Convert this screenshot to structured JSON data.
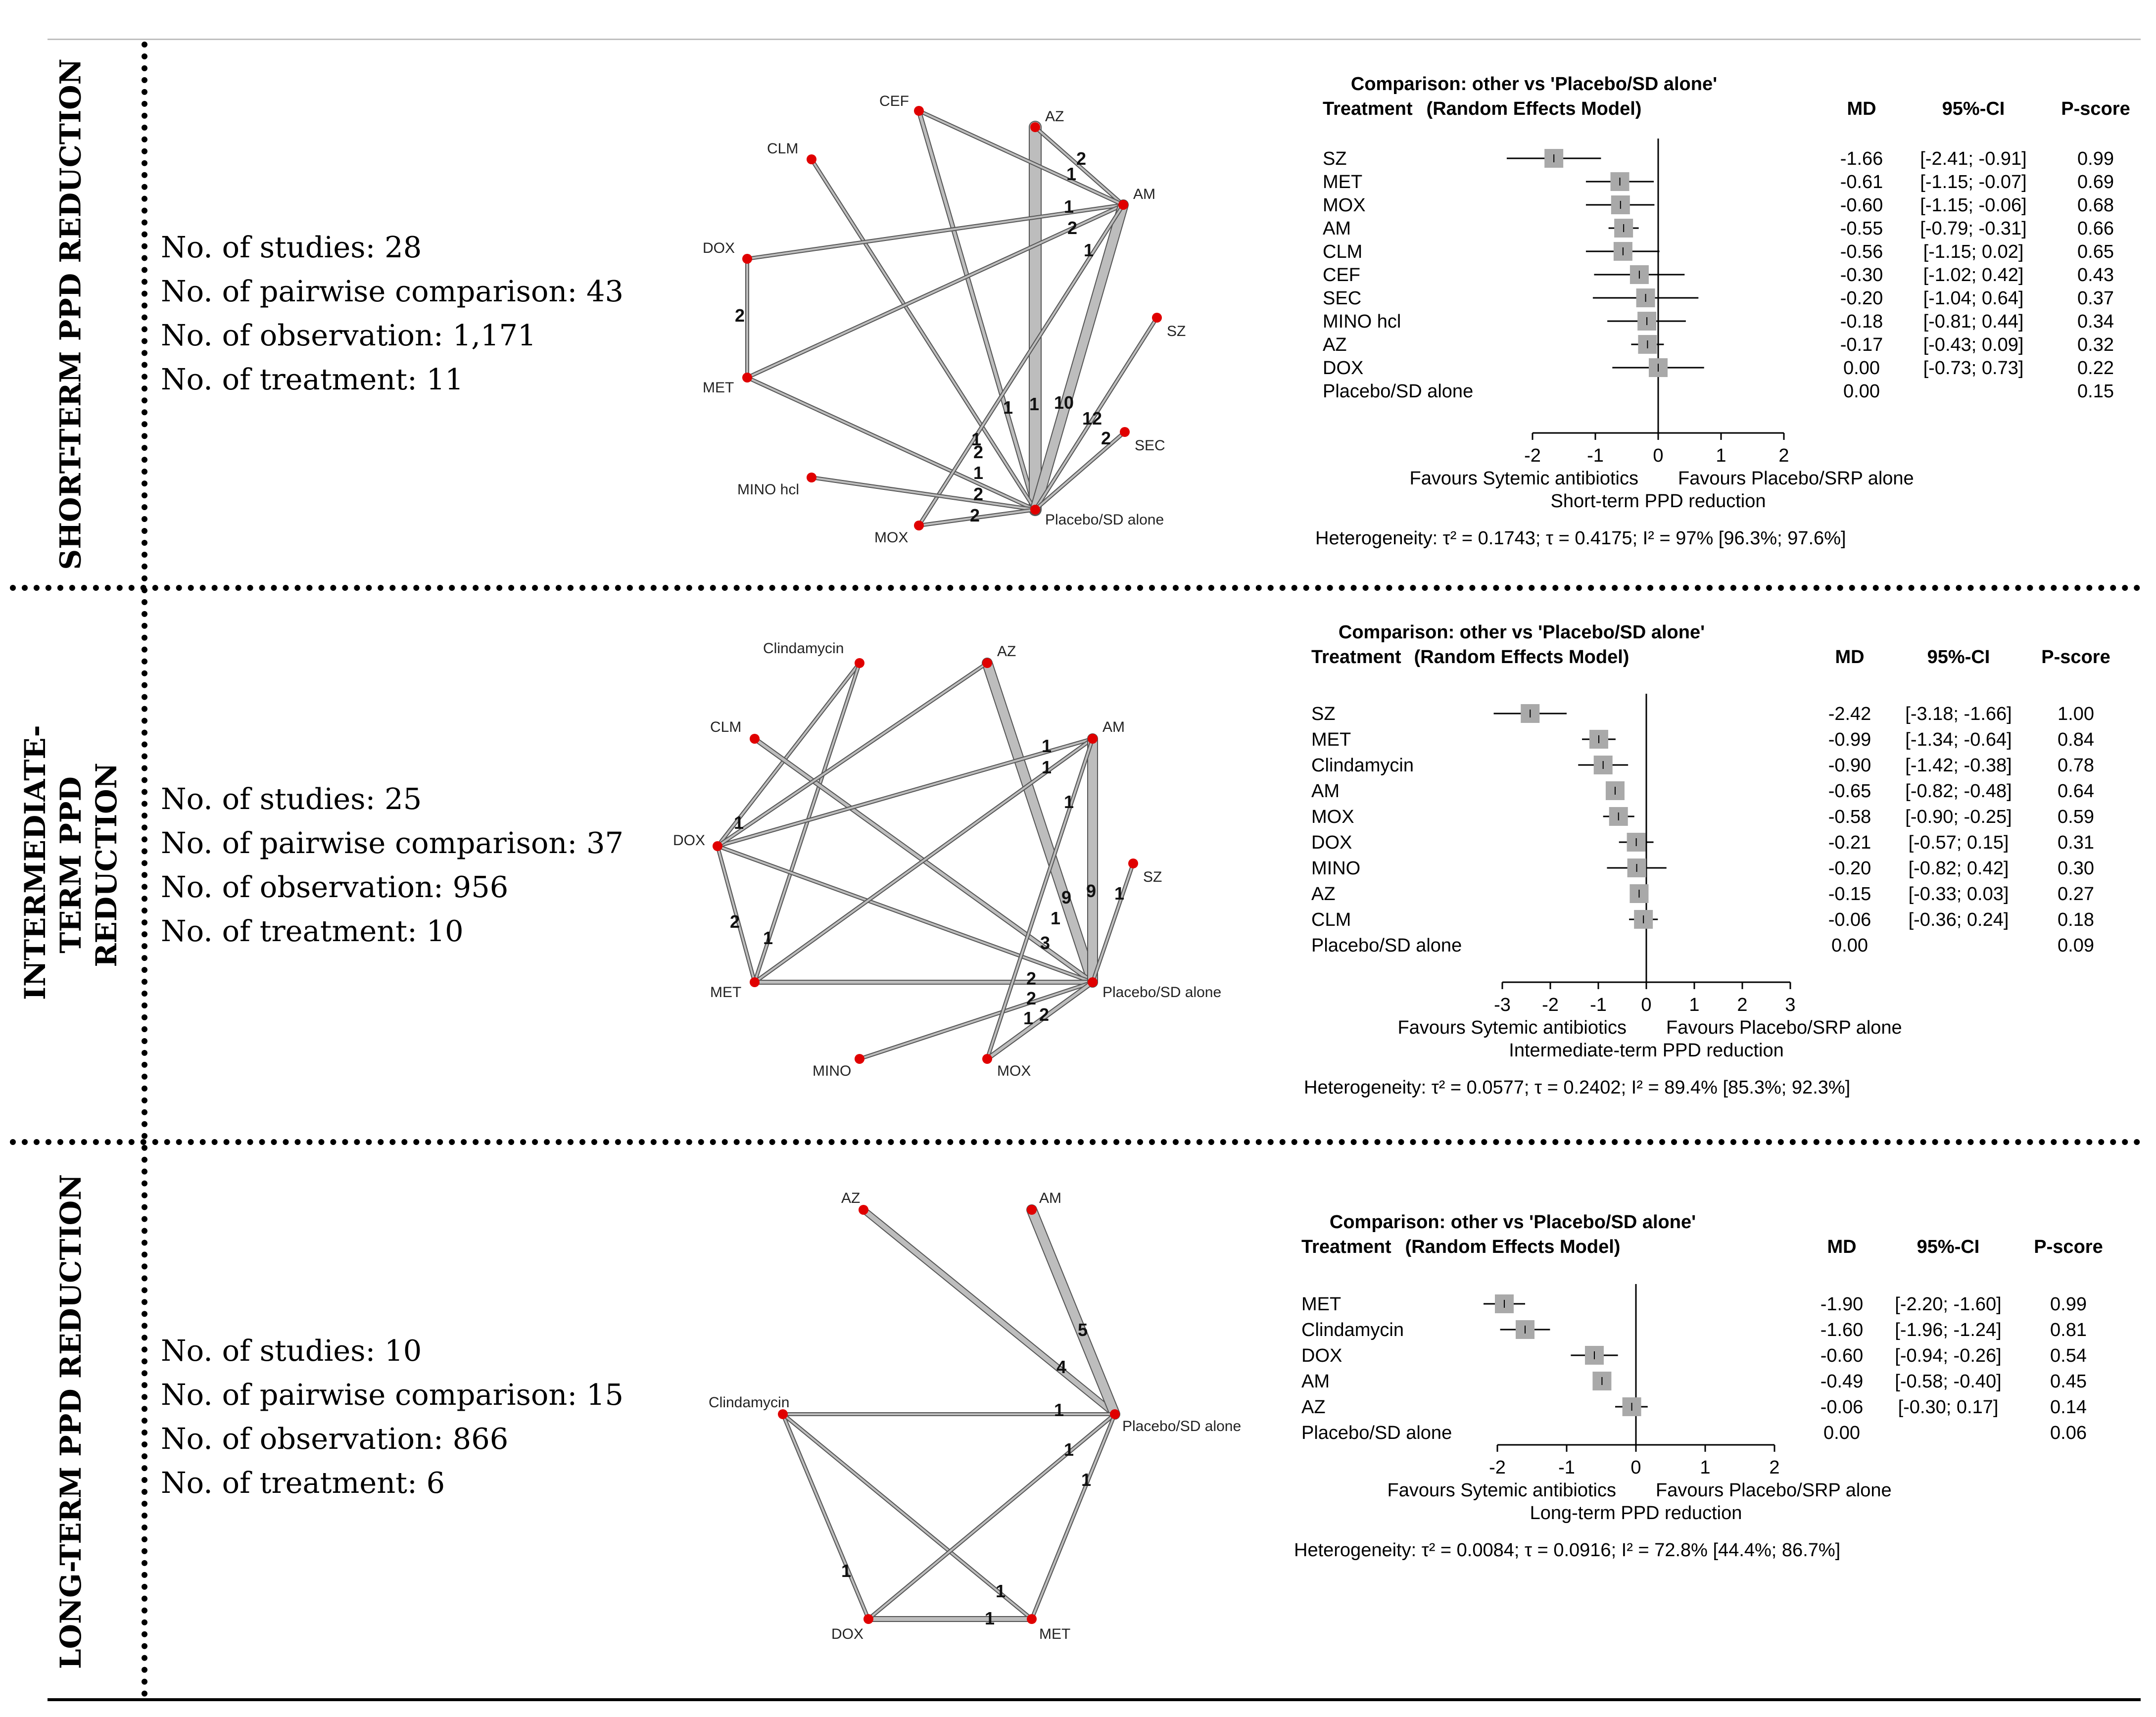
{
  "sections": [
    {
      "label": "SHORT-TERM PPD REDUCTION",
      "stats": [
        "No. of studies: 28",
        "No. of pairwise comparison: 43",
        "No. of observation: 1,171",
        "No. of treatment: 11"
      ],
      "network": {
        "nodes": [
          "CEF",
          "AZ",
          "CLM",
          "AM",
          "DOX",
          "SZ",
          "MET",
          "SEC",
          "MINO hcl",
          "MOX",
          "Placebo/SD alone"
        ],
        "edge_numbers": [
          "2",
          "1",
          "1",
          "2",
          "1",
          "1",
          "1",
          "10",
          "12",
          "2",
          "1",
          "2",
          "1",
          "2",
          "2",
          "2"
        ]
      },
      "forest": {
        "title": "Comparison: other vs 'Placebo/SD alone'",
        "model": "(Random Effects Model)",
        "headers": {
          "treatment": "Treatment",
          "md": "MD",
          "ci": "95%-CI",
          "pscore": "P-score"
        },
        "axis_ticks": [
          "-2",
          "-1",
          "0",
          "1",
          "2"
        ],
        "favours_left": "Favours Sytemic antibiotics",
        "favours_right": "Favours Placebo/SRP alone",
        "xlabel": "Short-term PPD reduction",
        "heterogeneity": "Heterogeneity: τ² = 0.1743; τ = 0.4175; I² = 97% [96.3%; 97.6%]"
      }
    },
    {
      "label": "INTERMEDIATE-TERM PPD REDUCTION",
      "stats": [
        "No. of studies: 25",
        "No. of pairwise comparison: 37",
        "No. of observation: 956",
        "No. of treatment: 10"
      ],
      "network": {
        "nodes": [
          "Clindamycin",
          "AZ",
          "CLM",
          "AM",
          "DOX",
          "SZ",
          "MET",
          "Placebo/SD alone",
          "MINO",
          "MOX"
        ],
        "edge_numbers": [
          "1",
          "1",
          "1",
          "1",
          "9",
          "9",
          "1",
          "1",
          "2",
          "1",
          "3",
          "2",
          "2",
          "1",
          "2"
        ]
      },
      "forest": {
        "title": "Comparison: other vs 'Placebo/SD alone'",
        "model": "(Random Effects Model)",
        "headers": {
          "treatment": "Treatment",
          "md": "MD",
          "ci": "95%-CI",
          "pscore": "P-score"
        },
        "axis_ticks": [
          "-3",
          "-2",
          "-1",
          "0",
          "1",
          "2",
          "3"
        ],
        "favours_left": "Favours Sytemic antibiotics",
        "favours_right": "Favours Placebo/SRP alone",
        "xlabel": "Intermediate-term PPD reduction",
        "heterogeneity": "Heterogeneity: τ² = 0.0577; τ = 0.2402; I² = 89.4% [85.3%; 92.3%]"
      }
    },
    {
      "label": "LONG-TERM PPD REDUCTION",
      "stats": [
        "No. of studies: 10",
        "No. of pairwise comparison: 15",
        "No. of observation: 866",
        "No. of treatment: 6"
      ],
      "network": {
        "nodes": [
          "AZ",
          "AM",
          "Clindamycin",
          "Placebo/SD alone",
          "DOX",
          "MET"
        ],
        "edge_numbers": [
          "5",
          "4",
          "1",
          "1",
          "1",
          "1",
          "1",
          "1"
        ]
      },
      "forest": {
        "title": "Comparison: other vs 'Placebo/SD alone'",
        "model": "(Random Effects Model)",
        "headers": {
          "treatment": "Treatment",
          "md": "MD",
          "ci": "95%-CI",
          "pscore": "P-score"
        },
        "axis_ticks": [
          "-2",
          "-1",
          "0",
          "1",
          "2"
        ],
        "favours_left": "Favours Sytemic antibiotics",
        "favours_right": "Favours Placebo/SRP alone",
        "xlabel": "Long-term PPD reduction",
        "heterogeneity": "Heterogeneity: τ² = 0.0084; τ = 0.0916; I² = 72.8% [44.4%; 86.7%]"
      }
    }
  ],
  "chart_data": [
    {
      "type": "forest",
      "title": "Comparison: other vs 'Placebo/SD alone'",
      "xlabel": "Short-term PPD reduction",
      "xlim": [
        -2,
        2
      ],
      "rows": [
        {
          "treatment": "SZ",
          "md": -1.66,
          "lo": -2.41,
          "hi": -0.91,
          "md_text": "-1.66",
          "ci_text": "[-2.41; -0.91]",
          "pscore": "0.99"
        },
        {
          "treatment": "MET",
          "md": -0.61,
          "lo": -1.15,
          "hi": -0.07,
          "md_text": "-0.61",
          "ci_text": "[-1.15; -0.07]",
          "pscore": "0.69"
        },
        {
          "treatment": "MOX",
          "md": -0.6,
          "lo": -1.15,
          "hi": -0.06,
          "md_text": "-0.60",
          "ci_text": "[-1.15; -0.06]",
          "pscore": "0.68"
        },
        {
          "treatment": "AM",
          "md": -0.55,
          "lo": -0.79,
          "hi": -0.31,
          "md_text": "-0.55",
          "ci_text": "[-0.79; -0.31]",
          "pscore": "0.66"
        },
        {
          "treatment": "CLM",
          "md": -0.56,
          "lo": -1.15,
          "hi": 0.02,
          "md_text": "-0.56",
          "ci_text": "[-1.15; 0.02]",
          "pscore": "0.65"
        },
        {
          "treatment": "CEF",
          "md": -0.3,
          "lo": -1.02,
          "hi": 0.42,
          "md_text": "-0.30",
          "ci_text": "[-1.02; 0.42]",
          "pscore": "0.43"
        },
        {
          "treatment": "SEC",
          "md": -0.2,
          "lo": -1.04,
          "hi": 0.64,
          "md_text": "-0.20",
          "ci_text": "[-1.04; 0.64]",
          "pscore": "0.37"
        },
        {
          "treatment": "MINO hcl",
          "md": -0.18,
          "lo": -0.81,
          "hi": 0.44,
          "md_text": "-0.18",
          "ci_text": "[-0.81; 0.44]",
          "pscore": "0.34"
        },
        {
          "treatment": "AZ",
          "md": -0.17,
          "lo": -0.43,
          "hi": 0.09,
          "md_text": "-0.17",
          "ci_text": "[-0.43; 0.09]",
          "pscore": "0.32"
        },
        {
          "treatment": "DOX",
          "md": 0.0,
          "lo": -0.73,
          "hi": 0.73,
          "md_text": "0.00",
          "ci_text": "[-0.73; 0.73]",
          "pscore": "0.22"
        },
        {
          "treatment": "Placebo/SD alone",
          "md": null,
          "lo": null,
          "hi": null,
          "md_text": "0.00",
          "ci_text": "",
          "pscore": "0.15"
        }
      ]
    },
    {
      "type": "forest",
      "title": "Comparison: other vs 'Placebo/SD alone'",
      "xlabel": "Intermediate-term PPD reduction",
      "xlim": [
        -3,
        3
      ],
      "rows": [
        {
          "treatment": "SZ",
          "md": -2.42,
          "lo": -3.18,
          "hi": -1.66,
          "md_text": "-2.42",
          "ci_text": "[-3.18; -1.66]",
          "pscore": "1.00"
        },
        {
          "treatment": "MET",
          "md": -0.99,
          "lo": -1.34,
          "hi": -0.64,
          "md_text": "-0.99",
          "ci_text": "[-1.34; -0.64]",
          "pscore": "0.84"
        },
        {
          "treatment": "Clindamycin",
          "md": -0.9,
          "lo": -1.42,
          "hi": -0.38,
          "md_text": "-0.90",
          "ci_text": "[-1.42; -0.38]",
          "pscore": "0.78"
        },
        {
          "treatment": "AM",
          "md": -0.65,
          "lo": -0.82,
          "hi": -0.48,
          "md_text": "-0.65",
          "ci_text": "[-0.82; -0.48]",
          "pscore": "0.64"
        },
        {
          "treatment": "MOX",
          "md": -0.58,
          "lo": -0.9,
          "hi": -0.25,
          "md_text": "-0.58",
          "ci_text": "[-0.90; -0.25]",
          "pscore": "0.59"
        },
        {
          "treatment": "DOX",
          "md": -0.21,
          "lo": -0.57,
          "hi": 0.15,
          "md_text": "-0.21",
          "ci_text": "[-0.57; 0.15]",
          "pscore": "0.31"
        },
        {
          "treatment": "MINO",
          "md": -0.2,
          "lo": -0.82,
          "hi": 0.42,
          "md_text": "-0.20",
          "ci_text": "[-0.82; 0.42]",
          "pscore": "0.30"
        },
        {
          "treatment": "AZ",
          "md": -0.15,
          "lo": -0.33,
          "hi": 0.03,
          "md_text": "-0.15",
          "ci_text": "[-0.33; 0.03]",
          "pscore": "0.27"
        },
        {
          "treatment": "CLM",
          "md": -0.06,
          "lo": -0.36,
          "hi": 0.24,
          "md_text": "-0.06",
          "ci_text": "[-0.36; 0.24]",
          "pscore": "0.18"
        },
        {
          "treatment": "Placebo/SD alone",
          "md": null,
          "lo": null,
          "hi": null,
          "md_text": "0.00",
          "ci_text": "",
          "pscore": "0.09"
        }
      ]
    },
    {
      "type": "forest",
      "title": "Comparison: other vs 'Placebo/SD alone'",
      "xlabel": "Long-term PPD reduction",
      "xlim": [
        -2,
        2
      ],
      "rows": [
        {
          "treatment": "MET",
          "md": -1.9,
          "lo": -2.2,
          "hi": -1.6,
          "md_text": "-1.90",
          "ci_text": "[-2.20; -1.60]",
          "pscore": "0.99"
        },
        {
          "treatment": "Clindamycin",
          "md": -1.6,
          "lo": -1.96,
          "hi": -1.24,
          "md_text": "-1.60",
          "ci_text": "[-1.96; -1.24]",
          "pscore": "0.81"
        },
        {
          "treatment": "DOX",
          "md": -0.6,
          "lo": -0.94,
          "hi": -0.26,
          "md_text": "-0.60",
          "ci_text": "[-0.94; -0.26]",
          "pscore": "0.54"
        },
        {
          "treatment": "AM",
          "md": -0.49,
          "lo": -0.58,
          "hi": -0.4,
          "md_text": "-0.49",
          "ci_text": "[-0.58; -0.40]",
          "pscore": "0.45"
        },
        {
          "treatment": "AZ",
          "md": -0.06,
          "lo": -0.3,
          "hi": 0.17,
          "md_text": "-0.06",
          "ci_text": "[-0.30; 0.17]",
          "pscore": "0.14"
        },
        {
          "treatment": "Placebo/SD alone",
          "md": null,
          "lo": null,
          "hi": null,
          "md_text": "0.00",
          "ci_text": "",
          "pscore": "0.06"
        }
      ]
    }
  ]
}
